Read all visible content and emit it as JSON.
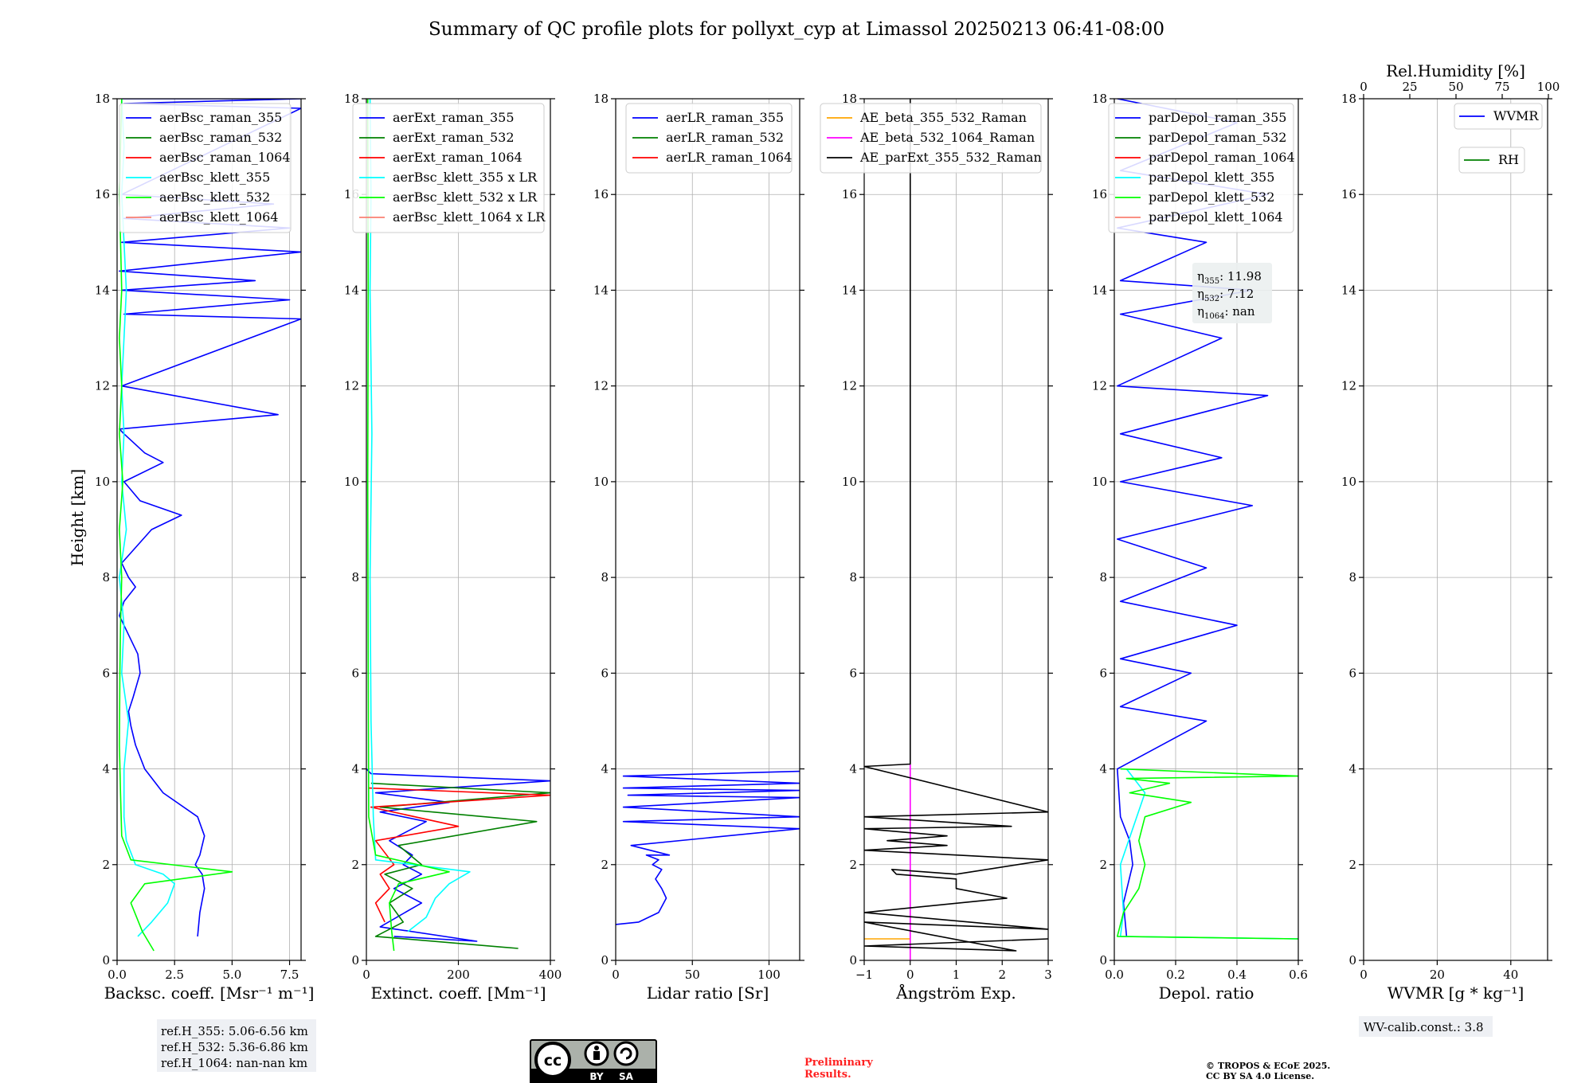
{
  "title": "Summary of QC profile plots for pollyxt_cyp at Limassol 20250213 06:41-08:00",
  "y_axis_label": "Height [km]",
  "colors": {
    "blue": "#0000ff",
    "green": "#008000",
    "red": "#ff0000",
    "cyan": "#00ffff",
    "lime": "#00ff00",
    "salmon": "#fa8072",
    "orange": "#ffa500",
    "magenta": "#ff00ff",
    "black": "#000000",
    "grid": "#b0b0b0",
    "legend_edge": "#cccccc",
    "note_bg": "#eef0f4"
  },
  "panels": [
    {
      "xlabel": "Backsc. coeff. [Msr⁻¹ m⁻¹]",
      "xlim": [
        0,
        8
      ],
      "xticks": [
        0,
        2.5,
        5,
        7.5
      ],
      "xticklabels": [
        "0.0",
        "2.5",
        "5.0",
        "7.5"
      ],
      "legend": [
        "aerBsc_raman_355",
        "aerBsc_raman_532",
        "aerBsc_raman_1064",
        "aerBsc_klett_355",
        "aerBsc_klett_532",
        "aerBsc_klett_1064"
      ],
      "legend_colors": [
        "blue",
        "green",
        "red",
        "cyan",
        "lime",
        "salmon"
      ],
      "note": [
        "ref.H_355: 5.06-6.56 km",
        "ref.H_532: 5.36-6.86 km",
        "ref.H_1064: nan-nan km"
      ]
    },
    {
      "xlabel": "Extinct. coeff. [Mm⁻¹]",
      "xlim": [
        0,
        400
      ],
      "xticks": [
        0,
        200,
        400
      ],
      "xticklabels": [
        "0",
        "200",
        "400"
      ],
      "legend": [
        "aerExt_raman_355",
        "aerExt_raman_532",
        "aerExt_raman_1064",
        "aerBsc_klett_355 x LR",
        "aerBsc_klett_532 x LR",
        "aerBsc_klett_1064 x LR"
      ],
      "legend_colors": [
        "blue",
        "green",
        "red",
        "cyan",
        "lime",
        "salmon"
      ]
    },
    {
      "xlabel": "Lidar ratio [Sr]",
      "xlim": [
        0,
        120
      ],
      "xticks": [
        0,
        50,
        100
      ],
      "xticklabels": [
        "0",
        "50",
        "100"
      ],
      "legend": [
        "aerLR_raman_355",
        "aerLR_raman_532",
        "aerLR_raman_1064"
      ],
      "legend_colors": [
        "blue",
        "green",
        "red"
      ]
    },
    {
      "xlabel": "Ångström Exp.",
      "xlim": [
        -1,
        3
      ],
      "xticks": [
        -1,
        0,
        1,
        2,
        3
      ],
      "xticklabels": [
        "−1",
        "0",
        "1",
        "2",
        "3"
      ],
      "legend": [
        "AE_beta_355_532_Raman",
        "AE_beta_532_1064_Raman",
        "AE_parExt_355_532_Raman"
      ],
      "legend_colors": [
        "orange",
        "magenta",
        "black"
      ]
    },
    {
      "xlabel": "Depol. ratio",
      "xlim": [
        0,
        0.6
      ],
      "xticks": [
        0,
        0.2,
        0.4,
        0.6
      ],
      "xticklabels": [
        "0.0",
        "0.2",
        "0.4",
        "0.6"
      ],
      "legend": [
        "parDepol_raman_355",
        "parDepol_raman_532",
        "parDepol_raman_1064",
        "parDepol_klett_355",
        "parDepol_klett_532",
        "parDepol_klett_1064"
      ],
      "legend_colors": [
        "blue",
        "green",
        "red",
        "cyan",
        "lime",
        "salmon"
      ],
      "eta_labels": [
        "η",
        "η",
        "η"
      ],
      "eta_subscripts": [
        "355",
        "532",
        "1064"
      ],
      "eta_values": [
        ": 11.98",
        ": 7.12",
        ": nan"
      ]
    },
    {
      "xlabel": "WVMR [g * kg⁻¹]",
      "xlim": [
        0,
        50
      ],
      "xticks": [
        0,
        20,
        40
      ],
      "xticklabels": [
        "0",
        "20",
        "40"
      ],
      "top_xlabel": "Rel.Humidity [%]",
      "top_xticks": [
        0,
        25,
        50,
        75,
        100
      ],
      "top_xticklabels": [
        "0",
        "25",
        "50",
        "75",
        "100"
      ],
      "legend": [
        "WVMR",
        "RH"
      ],
      "legend_colors": [
        "blue",
        "green"
      ],
      "note": [
        "WV-calib.const.: 3.8"
      ]
    }
  ],
  "chart_data": [
    {
      "type": "line",
      "ylabel": "Height [km]",
      "ylim": [
        0,
        18
      ],
      "yticks": [
        0,
        2,
        4,
        6,
        8,
        10,
        12,
        14,
        16,
        18
      ],
      "xlabel": "Backsc. coeff. [Msr⁻¹ m⁻¹]",
      "xlim": [
        0,
        8
      ],
      "series": [
        {
          "name": "aerBsc_raman_355",
          "color": "blue",
          "x": [
            3.5,
            3.6,
            3.8,
            3.7,
            3.4,
            3.6,
            3.8,
            3.5,
            2.0,
            1.2,
            0.8,
            0.6,
            0.5,
            0.7,
            1.0,
            0.9,
            0.5,
            0.2,
            0.1,
            0.3,
            0.8,
            0.5,
            0.2,
            1.5,
            2.8,
            1.0,
            0.3,
            2.0,
            1.2,
            0.3,
            0.1,
            7.0,
            0.2,
            8.0,
            0.3,
            7.5,
            0.2,
            6.0,
            0.1,
            8.0,
            0.2,
            7.5,
            0.3,
            6.8,
            0.2,
            8.0,
            0.3,
            8.0,
            0.2
          ],
          "y": [
            0.5,
            1.0,
            1.5,
            1.8,
            2.0,
            2.2,
            2.6,
            3.0,
            3.5,
            4.0,
            4.5,
            4.9,
            5.2,
            5.5,
            6.0,
            6.4,
            6.8,
            7.1,
            7.2,
            7.5,
            7.8,
            8.0,
            8.3,
            9.0,
            9.3,
            9.6,
            10.0,
            10.4,
            10.6,
            11.0,
            11.1,
            11.4,
            12.0,
            13.4,
            13.5,
            13.8,
            14.0,
            14.2,
            14.4,
            14.8,
            15.0,
            15.3,
            15.5,
            15.8,
            16.0,
            17.8,
            17.9,
            18.0,
            18.0
          ]
        },
        {
          "name": "aerBsc_raman_532",
          "color": "green",
          "x": [],
          "y": []
        },
        {
          "name": "aerBsc_raman_1064",
          "color": "red",
          "x": [],
          "y": []
        },
        {
          "name": "aerBsc_klett_355",
          "color": "cyan",
          "x": [
            0.9,
            1.5,
            2.2,
            2.5,
            2.0,
            0.8,
            0.4,
            0.3,
            0.3,
            0.5,
            0.2,
            0.3,
            0.1,
            0.4,
            0.2,
            0.3,
            0.2,
            0.4,
            0.2,
            0.3,
            0.2
          ],
          "y": [
            0.5,
            0.8,
            1.2,
            1.6,
            1.8,
            2.0,
            2.5,
            3.0,
            4.0,
            5.0,
            6.0,
            7.0,
            8.0,
            9.0,
            10.0,
            11.0,
            12.0,
            14.0,
            16.0,
            17.0,
            18.0
          ]
        },
        {
          "name": "aerBsc_klett_532",
          "color": "lime",
          "x": [
            1.6,
            1.1,
            0.6,
            1.2,
            5.0,
            0.6,
            0.2,
            0.15,
            0.1,
            0.12,
            0.15,
            0.2,
            0.1,
            0.25,
            0.1,
            0.2,
            0.1,
            0.2,
            0.1,
            0.2
          ],
          "y": [
            0.2,
            0.6,
            1.2,
            1.6,
            1.85,
            2.1,
            2.6,
            3.5,
            4.5,
            6.0,
            7.0,
            8.0,
            9.0,
            10.0,
            11.0,
            12.0,
            13.0,
            14.0,
            16.0,
            18.0
          ]
        },
        {
          "name": "aerBsc_klett_1064",
          "color": "salmon",
          "x": [],
          "y": []
        }
      ]
    },
    {
      "type": "line",
      "ylabel": "Height [km]",
      "ylim": [
        0,
        18
      ],
      "xlabel": "Extinct. coeff. [Mm⁻¹]",
      "xlim": [
        0,
        400
      ],
      "series": [
        {
          "name": "aerExt_raman_355",
          "color": "blue",
          "x": [
            60,
            240,
            30,
            120,
            60,
            120,
            80,
            100,
            50,
            130,
            30,
            180,
            20,
            400,
            10,
            0
          ],
          "y": [
            0.5,
            0.4,
            0.7,
            1.2,
            1.5,
            1.8,
            2.0,
            2.2,
            2.5,
            2.9,
            3.1,
            3.3,
            3.5,
            3.75,
            3.9,
            4.0
          ]
        },
        {
          "name": "aerExt_raman_532",
          "color": "green",
          "x": [
            330,
            20,
            80,
            50,
            100,
            40,
            120,
            70,
            370,
            30,
            400,
            10
          ],
          "y": [
            0.25,
            0.5,
            0.8,
            1.2,
            1.5,
            1.8,
            2.0,
            2.4,
            2.9,
            3.2,
            3.5,
            3.7
          ]
        },
        {
          "name": "aerExt_raman_1064",
          "color": "red",
          "x": [
            40,
            20,
            50,
            30,
            60,
            20,
            200,
            10,
            400,
            5
          ],
          "y": [
            0.8,
            1.2,
            1.5,
            1.8,
            2.0,
            2.5,
            2.8,
            3.2,
            3.45,
            3.6
          ]
        },
        {
          "name": "aerBsc_klett_355 x LR",
          "color": "cyan",
          "x": [
            90,
            130,
            150,
            180,
            225,
            20,
            15,
            10,
            8,
            12,
            8,
            10,
            8
          ],
          "y": [
            0.6,
            0.9,
            1.3,
            1.6,
            1.85,
            2.1,
            3.0,
            5.0,
            8.0,
            11.0,
            14.0,
            16.0,
            18.0
          ]
        },
        {
          "name": "aerBsc_klett_532 x LR",
          "color": "lime",
          "x": [
            60,
            55,
            50,
            70,
            180,
            20,
            5,
            4,
            3,
            4,
            3
          ],
          "y": [
            0.2,
            0.6,
            1.2,
            1.6,
            1.85,
            2.2,
            3.0,
            6.0,
            10.0,
            14.0,
            18.0
          ]
        },
        {
          "name": "aerBsc_klett_1064 x LR",
          "color": "salmon",
          "x": [],
          "y": []
        }
      ]
    },
    {
      "type": "line",
      "ylabel": "Height [km]",
      "ylim": [
        0,
        18
      ],
      "xlabel": "Lidar ratio [Sr]",
      "xlim": [
        0,
        120
      ],
      "series": [
        {
          "name": "aerLR_raman_355",
          "color": "blue",
          "x": [
            0,
            15,
            28,
            33,
            30,
            26,
            30,
            24,
            28,
            20,
            35,
            10,
            120,
            5,
            120,
            5,
            120,
            8,
            120,
            5,
            120,
            5,
            120
          ],
          "y": [
            0.75,
            0.8,
            1.0,
            1.3,
            1.5,
            1.7,
            1.9,
            2.0,
            2.1,
            2.2,
            2.2,
            2.4,
            2.75,
            2.9,
            3.0,
            3.2,
            3.4,
            3.45,
            3.55,
            3.6,
            3.7,
            3.85,
            3.95
          ]
        },
        {
          "name": "aerLR_raman_532",
          "color": "green",
          "x": [],
          "y": []
        },
        {
          "name": "aerLR_raman_1064",
          "color": "red",
          "x": [],
          "y": []
        }
      ]
    },
    {
      "type": "line",
      "ylabel": "Height [km]",
      "ylim": [
        0,
        18
      ],
      "xlabel": "Ångström Exp.",
      "xlim": [
        -1,
        3
      ],
      "series": [
        {
          "name": "AE_beta_355_532_Raman",
          "color": "orange",
          "x": [
            -1,
            0
          ],
          "y": [
            0.45,
            0.45
          ]
        },
        {
          "name": "AE_beta_532_1064_Raman",
          "color": "magenta",
          "x": [
            0,
            0
          ],
          "y": [
            0,
            4.1
          ]
        },
        {
          "name": "AE_parExt_355_532_Raman",
          "color": "black",
          "x": [
            3,
            -1,
            2.3,
            -1,
            3,
            -1,
            2.1,
            1.0,
            1.0,
            -0.3,
            -0.4,
            1.0,
            3,
            -1,
            0.8,
            -0.5,
            0.8,
            -1,
            2.2,
            -1,
            3,
            -1,
            0,
            0
          ],
          "y": [
            0.45,
            0.3,
            0.2,
            0.8,
            0.65,
            1.0,
            1.3,
            1.5,
            1.7,
            1.8,
            1.9,
            1.8,
            2.1,
            2.3,
            2.4,
            2.5,
            2.6,
            2.75,
            2.8,
            3.0,
            3.1,
            4.05,
            4.1,
            18.0
          ]
        }
      ]
    },
    {
      "type": "line",
      "ylabel": "Height [km]",
      "ylim": [
        0,
        18
      ],
      "xlabel": "Depol. ratio",
      "xlim": [
        0,
        0.6
      ],
      "series": [
        {
          "name": "parDepol_raman_355",
          "color": "blue",
          "x": [
            0.04,
            0.03,
            0.06,
            0.05,
            0.02,
            0.01,
            0.3,
            0.02,
            0.25,
            0.02,
            0.4,
            0.02,
            0.3,
            0.01,
            0.45,
            0.02,
            0.35,
            0.02,
            0.5,
            0.01,
            0.35,
            0.02,
            0.45,
            0.02,
            0.3,
            0.01,
            0.5,
            0.02,
            0.4,
            0.01
          ],
          "y": [
            0.5,
            1.2,
            2.0,
            2.5,
            3.0,
            4.0,
            5.0,
            5.3,
            6.0,
            6.3,
            7.0,
            7.5,
            8.2,
            8.8,
            9.5,
            10.0,
            10.5,
            11.0,
            11.8,
            12.0,
            13.0,
            13.5,
            14.0,
            14.2,
            15.0,
            15.3,
            16.0,
            16.5,
            17.5,
            18.0
          ]
        },
        {
          "name": "parDepol_raman_532",
          "color": "green",
          "x": [],
          "y": []
        },
        {
          "name": "parDepol_raman_1064",
          "color": "red",
          "x": [],
          "y": []
        },
        {
          "name": "parDepol_klett_355",
          "color": "cyan",
          "x": [
            0.6,
            0.02,
            0.03,
            0.02,
            0.1,
            0.04
          ],
          "y": [
            0.45,
            0.5,
            1.0,
            2.0,
            3.5,
            4.0
          ]
        },
        {
          "name": "parDepol_klett_532",
          "color": "lime",
          "x": [
            0.6,
            0.01,
            0.03,
            0.08,
            0.1,
            0.08,
            0.1,
            0.25,
            0.05,
            0.18,
            0.04,
            0.6,
            0.02
          ],
          "y": [
            0.45,
            0.5,
            1.0,
            1.5,
            2.0,
            2.5,
            3.0,
            3.3,
            3.5,
            3.7,
            3.8,
            3.85,
            4.0
          ]
        },
        {
          "name": "parDepol_klett_1064",
          "color": "salmon",
          "x": [],
          "y": []
        }
      ]
    },
    {
      "type": "line",
      "ylabel": "Height [km]",
      "ylim": [
        0,
        18
      ],
      "xlabel": "WVMR [g * kg⁻¹]",
      "xlim": [
        0,
        50
      ],
      "top_xlabel": "Rel.Humidity [%]",
      "top_xlim": [
        0,
        100
      ],
      "series": [
        {
          "name": "WVMR",
          "color": "blue",
          "x": [],
          "y": []
        },
        {
          "name": "RH",
          "color": "green",
          "x": [],
          "y": []
        }
      ]
    }
  ],
  "footer": {
    "cc_labels": [
      "cc",
      "BY",
      "SA"
    ],
    "preliminary": [
      "Preliminary",
      "Results."
    ],
    "copyright": [
      "© TROPOS & ECoE 2025.",
      "CC BY SA 4.0 License."
    ]
  }
}
